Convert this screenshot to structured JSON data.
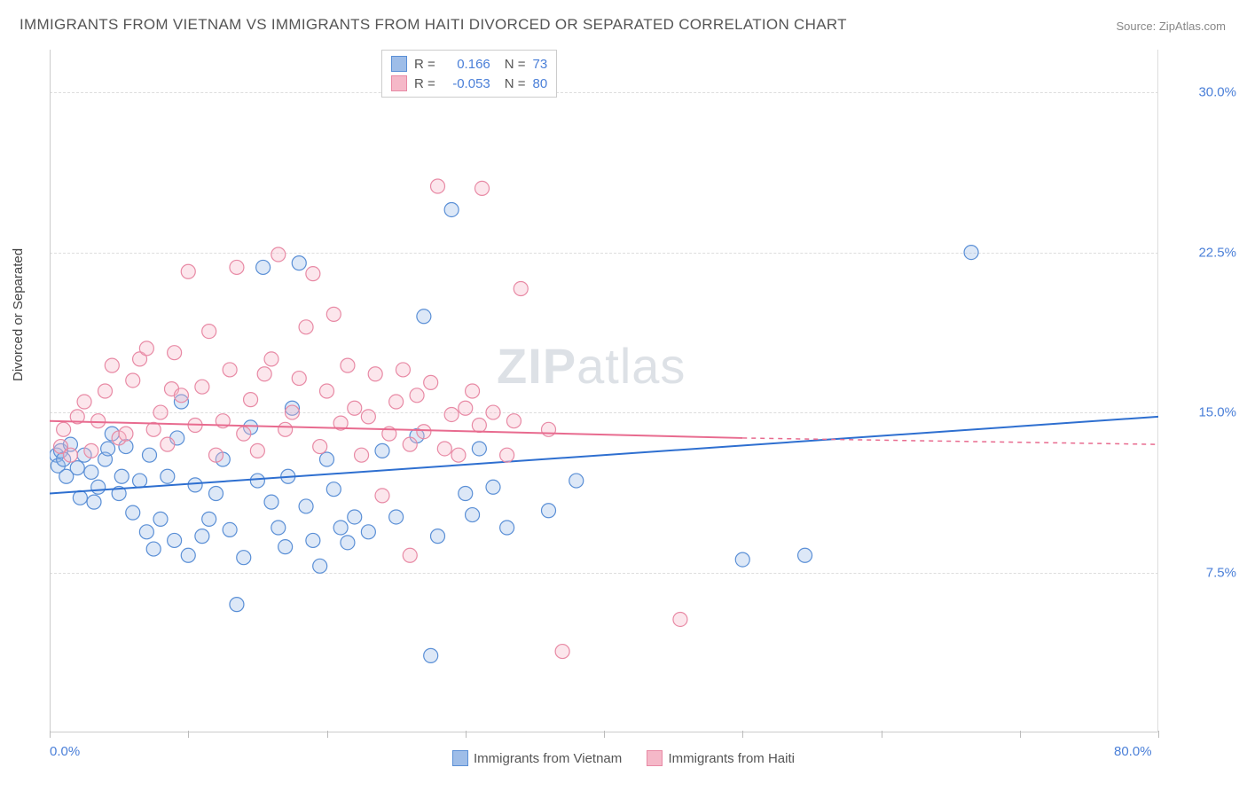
{
  "title": "IMMIGRANTS FROM VIETNAM VS IMMIGRANTS FROM HAITI DIVORCED OR SEPARATED CORRELATION CHART",
  "source": "Source: ZipAtlas.com",
  "ylabel": "Divorced or Separated",
  "watermark_bold": "ZIP",
  "watermark_light": "atlas",
  "chart": {
    "type": "scatter-with-trend",
    "xlim": [
      0,
      80
    ],
    "ylim": [
      0,
      32
    ],
    "xticks": [
      0,
      10,
      20,
      30,
      40,
      50,
      60,
      70,
      80
    ],
    "yticks": [
      7.5,
      15.0,
      22.5,
      30.0
    ],
    "xtick_labels": {
      "0": "0.0%",
      "80": "80.0%"
    },
    "ytick_labels": [
      "7.5%",
      "15.0%",
      "22.5%",
      "30.0%"
    ],
    "grid_color": "#dddddd",
    "axis_color": "#cccccc",
    "tick_label_color": "#4a7fd8",
    "background_color": "#ffffff",
    "marker_radius": 8,
    "marker_stroke_width": 1.2,
    "marker_fill_opacity": 0.35,
    "trend_line_width": 2
  },
  "series": [
    {
      "name": "Immigrants from Vietnam",
      "color_fill": "#9ebde8",
      "color_stroke": "#5a8fd6",
      "trend_color": "#2e6fd0",
      "R": "0.166",
      "N": "73",
      "trend": {
        "x1": 0,
        "y1": 11.2,
        "x2": 80,
        "y2": 14.8
      },
      "points": [
        [
          0.5,
          13.0
        ],
        [
          0.6,
          12.5
        ],
        [
          0.8,
          13.2
        ],
        [
          1.0,
          12.8
        ],
        [
          1.2,
          12.0
        ],
        [
          1.5,
          13.5
        ],
        [
          2.0,
          12.4
        ],
        [
          2.2,
          11.0
        ],
        [
          2.5,
          13.0
        ],
        [
          3.0,
          12.2
        ],
        [
          3.2,
          10.8
        ],
        [
          3.5,
          11.5
        ],
        [
          4.0,
          12.8
        ],
        [
          4.2,
          13.3
        ],
        [
          4.5,
          14.0
        ],
        [
          5.0,
          11.2
        ],
        [
          5.2,
          12.0
        ],
        [
          5.5,
          13.4
        ],
        [
          6.0,
          10.3
        ],
        [
          6.5,
          11.8
        ],
        [
          7.0,
          9.4
        ],
        [
          7.2,
          13.0
        ],
        [
          7.5,
          8.6
        ],
        [
          8.0,
          10.0
        ],
        [
          8.5,
          12.0
        ],
        [
          9.0,
          9.0
        ],
        [
          9.2,
          13.8
        ],
        [
          9.5,
          15.5
        ],
        [
          10.0,
          8.3
        ],
        [
          10.5,
          11.6
        ],
        [
          11.0,
          9.2
        ],
        [
          11.5,
          10.0
        ],
        [
          12.0,
          11.2
        ],
        [
          12.5,
          12.8
        ],
        [
          13.0,
          9.5
        ],
        [
          13.5,
          6.0
        ],
        [
          14.0,
          8.2
        ],
        [
          14.5,
          14.3
        ],
        [
          15.0,
          11.8
        ],
        [
          15.4,
          21.8
        ],
        [
          16.0,
          10.8
        ],
        [
          16.5,
          9.6
        ],
        [
          17.0,
          8.7
        ],
        [
          17.2,
          12.0
        ],
        [
          17.5,
          15.2
        ],
        [
          18.0,
          22.0
        ],
        [
          18.5,
          10.6
        ],
        [
          19.0,
          9.0
        ],
        [
          19.5,
          7.8
        ],
        [
          20.0,
          12.8
        ],
        [
          20.5,
          11.4
        ],
        [
          21.0,
          9.6
        ],
        [
          21.5,
          8.9
        ],
        [
          22.0,
          10.1
        ],
        [
          23.0,
          9.4
        ],
        [
          24.0,
          13.2
        ],
        [
          25.0,
          10.1
        ],
        [
          26.5,
          13.9
        ],
        [
          27.0,
          19.5
        ],
        [
          28.0,
          9.2
        ],
        [
          29.0,
          24.5
        ],
        [
          30.0,
          11.2
        ],
        [
          30.5,
          10.2
        ],
        [
          31.0,
          13.3
        ],
        [
          32.0,
          11.5
        ],
        [
          33.0,
          9.6
        ],
        [
          36.0,
          10.4
        ],
        [
          38.0,
          11.8
        ],
        [
          27.5,
          3.6
        ],
        [
          50.0,
          8.1
        ],
        [
          54.5,
          8.3
        ],
        [
          66.5,
          22.5
        ]
      ]
    },
    {
      "name": "Immigrants from Haiti",
      "color_fill": "#f5b8c8",
      "color_stroke": "#e88aa5",
      "trend_color": "#e86b8f",
      "R": "-0.053",
      "N": "80",
      "trend": {
        "x1": 0,
        "y1": 14.6,
        "x2": 50,
        "y2": 13.8,
        "dash_to": 80,
        "dash_y": 13.5
      },
      "points": [
        [
          0.8,
          13.4
        ],
        [
          1.0,
          14.2
        ],
        [
          1.5,
          13.0
        ],
        [
          2.0,
          14.8
        ],
        [
          2.5,
          15.5
        ],
        [
          3.0,
          13.2
        ],
        [
          3.5,
          14.6
        ],
        [
          4.0,
          16.0
        ],
        [
          4.5,
          17.2
        ],
        [
          5.0,
          13.8
        ],
        [
          5.5,
          14.0
        ],
        [
          6.0,
          16.5
        ],
        [
          6.5,
          17.5
        ],
        [
          7.0,
          18.0
        ],
        [
          7.5,
          14.2
        ],
        [
          8.0,
          15.0
        ],
        [
          8.5,
          13.5
        ],
        [
          8.8,
          16.1
        ],
        [
          9.0,
          17.8
        ],
        [
          9.5,
          15.8
        ],
        [
          10.0,
          21.6
        ],
        [
          10.5,
          14.4
        ],
        [
          11.0,
          16.2
        ],
        [
          11.5,
          18.8
        ],
        [
          12.0,
          13.0
        ],
        [
          12.5,
          14.6
        ],
        [
          13.0,
          17.0
        ],
        [
          13.5,
          21.8
        ],
        [
          14.0,
          14.0
        ],
        [
          14.5,
          15.6
        ],
        [
          15.0,
          13.2
        ],
        [
          15.5,
          16.8
        ],
        [
          16.0,
          17.5
        ],
        [
          16.5,
          22.4
        ],
        [
          17.0,
          14.2
        ],
        [
          17.5,
          15.0
        ],
        [
          18.0,
          16.6
        ],
        [
          18.5,
          19.0
        ],
        [
          19.0,
          21.5
        ],
        [
          19.5,
          13.4
        ],
        [
          20.0,
          16.0
        ],
        [
          20.5,
          19.6
        ],
        [
          21.0,
          14.5
        ],
        [
          21.5,
          17.2
        ],
        [
          22.0,
          15.2
        ],
        [
          22.5,
          13.0
        ],
        [
          23.0,
          14.8
        ],
        [
          23.5,
          16.8
        ],
        [
          24.0,
          11.1
        ],
        [
          24.5,
          14.0
        ],
        [
          25.0,
          15.5
        ],
        [
          25.5,
          17.0
        ],
        [
          26.0,
          13.5
        ],
        [
          26.5,
          15.8
        ],
        [
          27.0,
          14.1
        ],
        [
          27.5,
          16.4
        ],
        [
          28.0,
          25.6
        ],
        [
          28.5,
          13.3
        ],
        [
          29.0,
          14.9
        ],
        [
          29.5,
          13.0
        ],
        [
          30.0,
          15.2
        ],
        [
          30.5,
          16.0
        ],
        [
          31.0,
          14.4
        ],
        [
          31.2,
          25.5
        ],
        [
          32.0,
          15.0
        ],
        [
          33.0,
          13.0
        ],
        [
          33.5,
          14.6
        ],
        [
          34.0,
          20.8
        ],
        [
          36.0,
          14.2
        ],
        [
          37.0,
          3.8
        ],
        [
          26.0,
          8.3
        ],
        [
          45.5,
          5.3
        ]
      ]
    }
  ],
  "legend_bottom": [
    {
      "label": "Immigrants from Vietnam",
      "fill": "#9ebde8",
      "stroke": "#5a8fd6"
    },
    {
      "label": "Immigrants from Haiti",
      "fill": "#f5b8c8",
      "stroke": "#e88aa5"
    }
  ]
}
